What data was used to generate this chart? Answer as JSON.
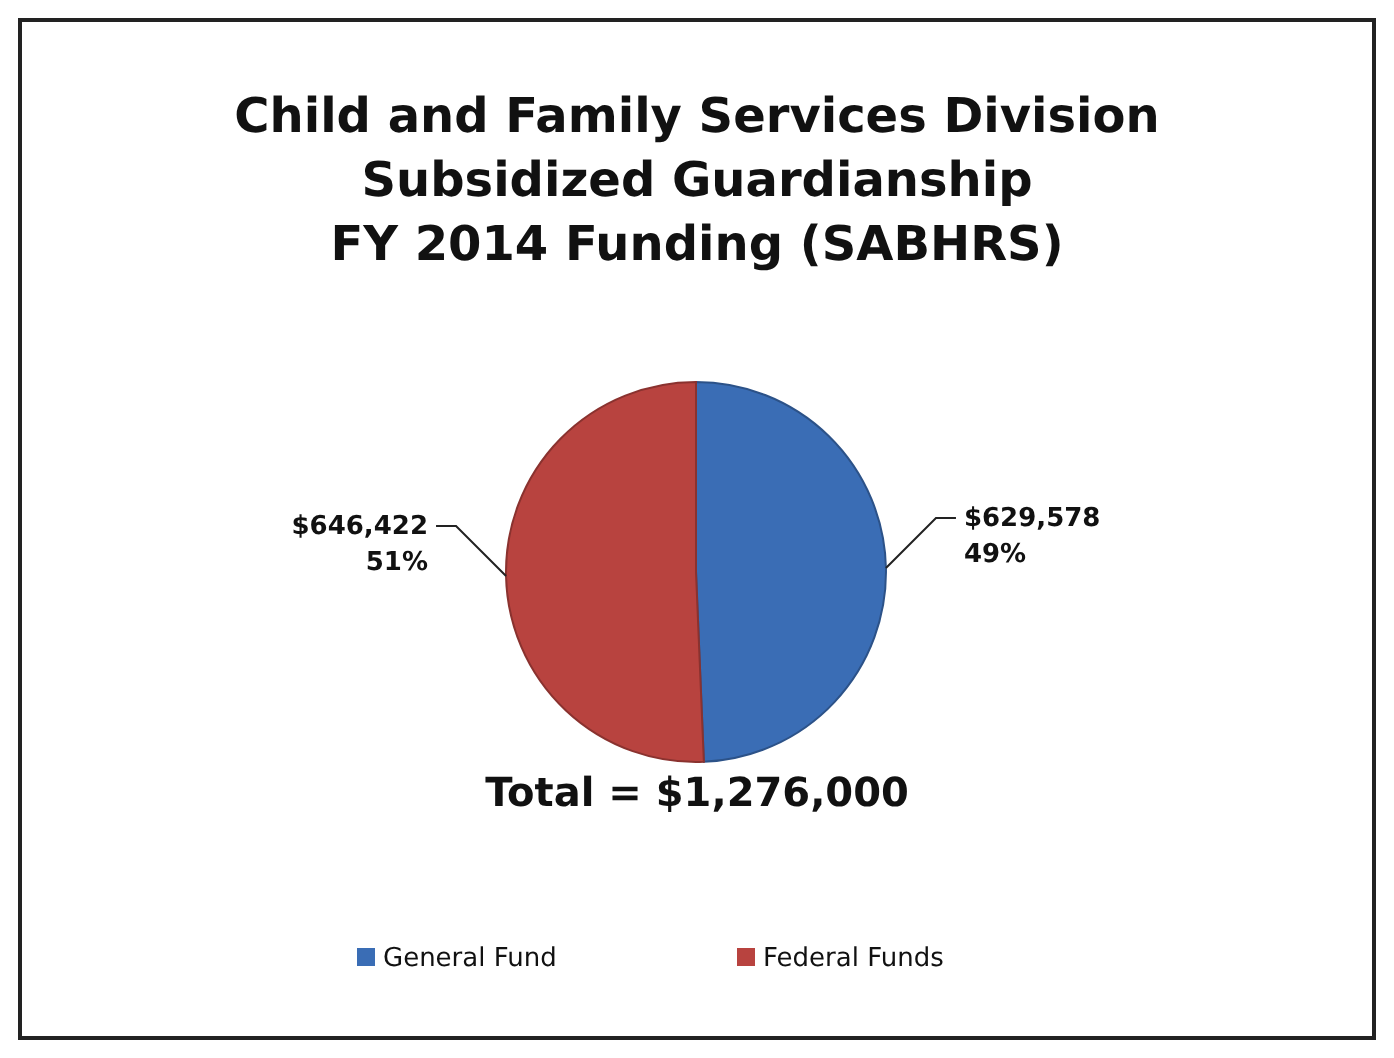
{
  "chart_data": {
    "type": "pie",
    "title": "Child and Family Services Division\nSubsidized Guardianship\nFY 2014 Funding (SABHRS)",
    "categories": [
      "General Fund",
      "Federal Funds"
    ],
    "values": [
      629578,
      646422
    ],
    "colors": [
      "#3a6db5",
      "#b8433f"
    ],
    "value_labels": [
      "$629,578\n49%",
      "$646,422\n51%"
    ],
    "annotations": [
      "Total = $1,276,000"
    ],
    "legend": "bottom"
  }
}
